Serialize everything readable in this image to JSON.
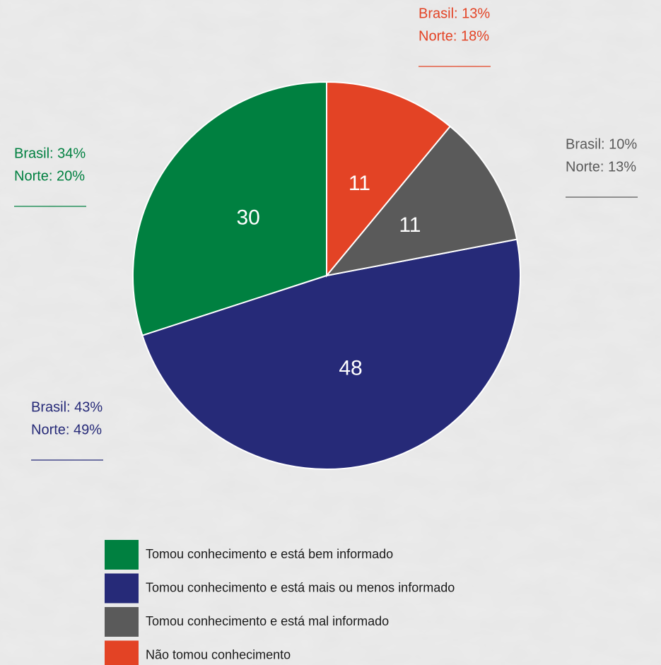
{
  "chart_data": {
    "type": "pie",
    "categories": [
      "Tomou conhecimento e está bem informado",
      "Tomou conhecimento e está mais ou menos informado",
      "Tomou conhecimento e está mal informado",
      "Não tomou conhecimento"
    ],
    "values": [
      30,
      48,
      11,
      11
    ],
    "colors": [
      "#008040",
      "#262a78",
      "#5a5a5a",
      "#e34325"
    ],
    "annotations": [
      [
        "Brasil: 34%",
        "Norte: 20%"
      ],
      [
        "Brasil: 43%",
        "Norte: 49%"
      ],
      [
        "Brasil: 10%",
        "Norte: 13%"
      ],
      [
        "Brasil: 13%",
        "Norte: 18%"
      ]
    ],
    "legend": "bottom"
  }
}
